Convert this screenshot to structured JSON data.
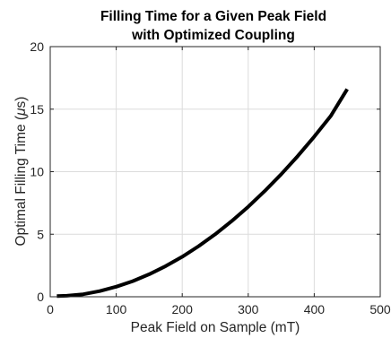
{
  "chart_data": {
    "type": "line",
    "title": [
      "Filling Time for a Given Peak Field",
      "with Optimized Coupling"
    ],
    "xlabel": "Peak Field on Sample (mT)",
    "ylabel_main": "Optimal Filling Time (",
    "ylabel_symbol": "μ",
    "ylabel_tail": "s)",
    "xlim": [
      0,
      500
    ],
    "ylim": [
      0,
      20
    ],
    "xticks": [
      0,
      100,
      200,
      300,
      400,
      500
    ],
    "yticks": [
      0,
      5,
      10,
      15,
      20
    ],
    "grid": true,
    "line_color": "#000000",
    "series": [
      {
        "x": [
          10,
          25,
          50,
          75,
          100,
          125,
          150,
          175,
          200,
          225,
          250,
          275,
          300,
          325,
          350,
          375,
          400,
          425,
          450
        ],
        "values": [
          0.05,
          0.08,
          0.2,
          0.45,
          0.8,
          1.25,
          1.8,
          2.45,
          3.2,
          4.05,
          5.0,
          6.05,
          7.2,
          8.45,
          9.8,
          11.25,
          12.8,
          14.45,
          16.6
        ]
      }
    ]
  }
}
